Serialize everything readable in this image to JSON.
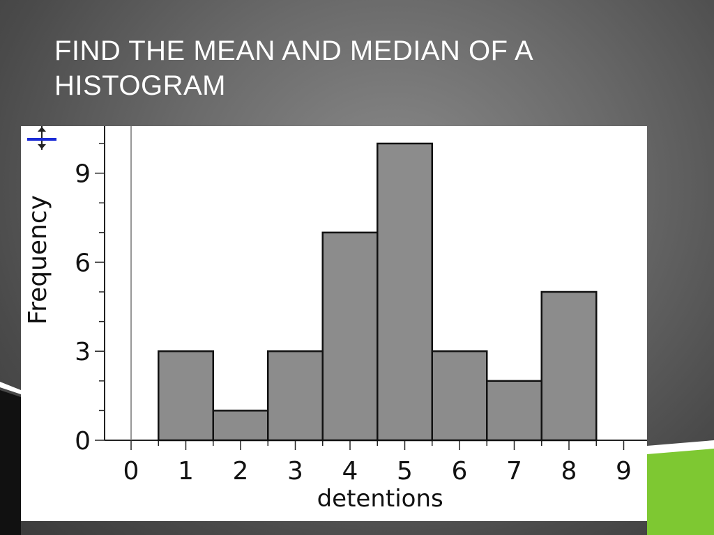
{
  "slide": {
    "title": "FIND THE MEAN AND MEDIAN OF A HISTOGRAM",
    "colors": {
      "accent_green": "#7ec832",
      "background": "#5a5a5a",
      "bar_fill": "#8c8c8c",
      "bar_stroke": "#111111"
    }
  },
  "chart_data": {
    "type": "bar",
    "categories": [
      "1",
      "2",
      "3",
      "4",
      "5",
      "6",
      "7",
      "8"
    ],
    "values": [
      3,
      1,
      3,
      7,
      10,
      3,
      2,
      5
    ],
    "xlabel": "detentions",
    "ylabel": "Frequency",
    "x_ticks": [
      "0",
      "1",
      "2",
      "3",
      "4",
      "5",
      "6",
      "7",
      "8",
      "9"
    ],
    "y_ticks": [
      "0",
      "3",
      "6",
      "9"
    ],
    "xlim": [
      0,
      9
    ],
    "ylim": [
      0,
      10.5
    ],
    "grid": false,
    "icon": "resize-vertical-icon"
  }
}
